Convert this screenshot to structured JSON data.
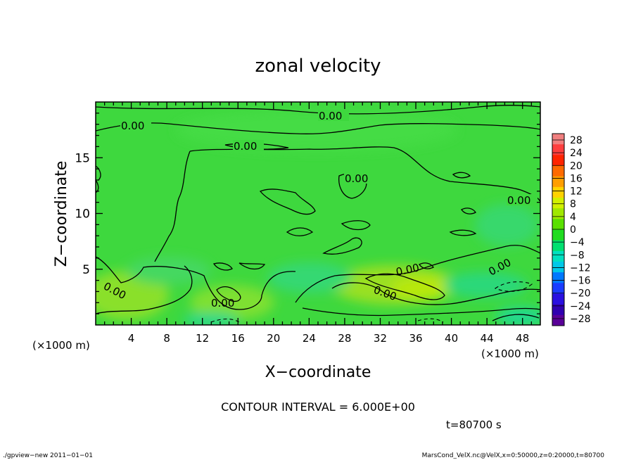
{
  "chart_data": {
    "type": "heatmap",
    "title": "zonal velocity",
    "xlabel": "X−coordinate",
    "ylabel": "Z−coordinate",
    "x_unit": "(×1000 m)",
    "y_unit": "(×1000 m)",
    "xlim": [
      0,
      50
    ],
    "ylim": [
      0,
      20
    ],
    "x_ticks": [
      4,
      8,
      12,
      16,
      20,
      24,
      28,
      32,
      36,
      40,
      44,
      48
    ],
    "y_ticks": [
      5,
      10,
      15
    ],
    "colorbar": {
      "labels": [
        "28",
        "24",
        "20",
        "16",
        "12",
        "8",
        "4",
        "0",
        "−4",
        "−8",
        "−12",
        "−16",
        "−20",
        "−24",
        "−28"
      ],
      "colors": [
        "#f07f7f",
        "#ff3f3f",
        "#ff2400",
        "#ff6a00",
        "#ff9e00",
        "#ffd200",
        "#d2f000",
        "#a0e800",
        "#5ae000",
        "#20dc20",
        "#00e070",
        "#00e0c0",
        "#00c8e8",
        "#0078ff",
        "#1a3cff",
        "#2a10e0",
        "#3000b0",
        "#5a0098"
      ]
    },
    "contour_interval_text": "CONTOUR INTERVAL = 6.000E+00",
    "contour_labels": [
      "0.00",
      "0.00",
      "0.00",
      "0.00",
      "0.00",
      "0.00",
      "0.00",
      "0.00",
      "0.00"
    ],
    "time_label": "t=80700 s"
  },
  "footer": {
    "left": "./gpview−new   2011−01−01",
    "right": "MarsCond_VelX.nc@VelX,x=0:50000,z=0:20000,t=80700"
  }
}
